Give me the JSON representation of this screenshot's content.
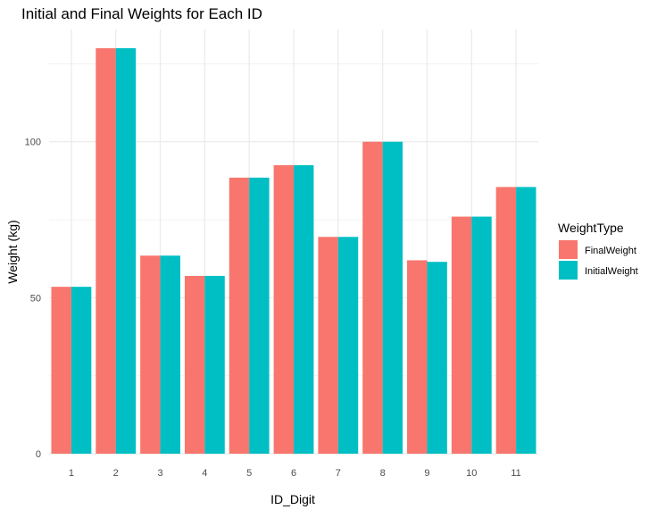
{
  "chart_data": {
    "type": "bar",
    "title": "Initial and Final Weights for Each ID",
    "xlabel": "ID_Digit",
    "ylabel": "Weight (kg)",
    "categories": [
      "1",
      "2",
      "3",
      "4",
      "5",
      "6",
      "7",
      "8",
      "9",
      "10",
      "11"
    ],
    "series": [
      {
        "name": "FinalWeight",
        "color": "#F8766D",
        "values": [
          53.5,
          130.0,
          63.5,
          57.0,
          88.5,
          92.5,
          69.5,
          100.0,
          62.0,
          76.0,
          85.5
        ]
      },
      {
        "name": "InitialWeight",
        "color": "#00BFC4",
        "values": [
          53.5,
          130.0,
          63.5,
          57.0,
          88.5,
          92.5,
          69.5,
          100.0,
          61.5,
          76.0,
          85.5
        ]
      }
    ],
    "y_ticks": [
      0,
      50,
      100
    ],
    "ylim": [
      0,
      136
    ],
    "grid": true,
    "legend": {
      "title": "WeightType",
      "position": "right"
    }
  }
}
